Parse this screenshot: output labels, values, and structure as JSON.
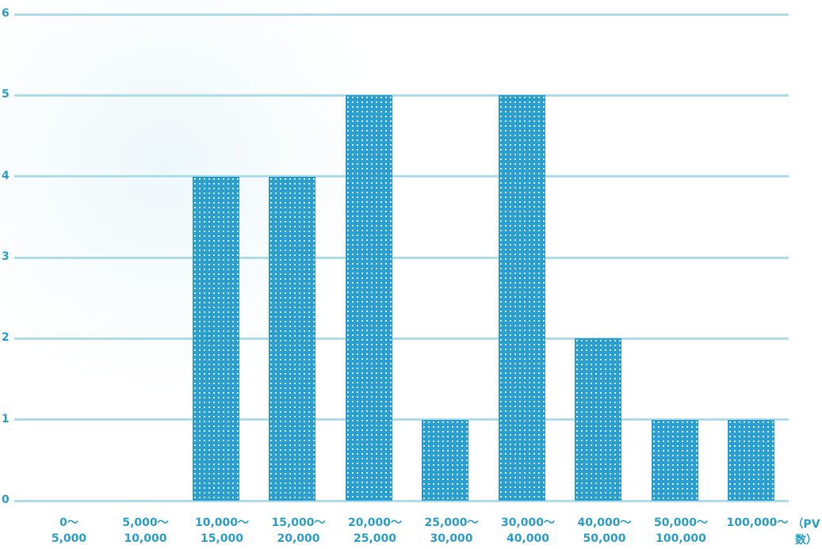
{
  "chart_data": {
    "type": "bar",
    "categories": [
      "0～\n5,000",
      "5,000～\n10,000",
      "10,000～\n15,000",
      "15,000～\n20,000",
      "20,000～\n25,000",
      "25,000～\n30,000",
      "30,000～\n40,000",
      "40,000～\n50,000",
      "50,000～\n100,000",
      "100,000～"
    ],
    "values": [
      0,
      0,
      4,
      4,
      5,
      1,
      5,
      2,
      1,
      1
    ],
    "color": "#2a9fd0",
    "x_label": "（PV数）",
    "ylim": [
      0,
      6
    ],
    "yticks": [
      0,
      1,
      2,
      3,
      4,
      5,
      6
    ],
    "grid": true
  }
}
